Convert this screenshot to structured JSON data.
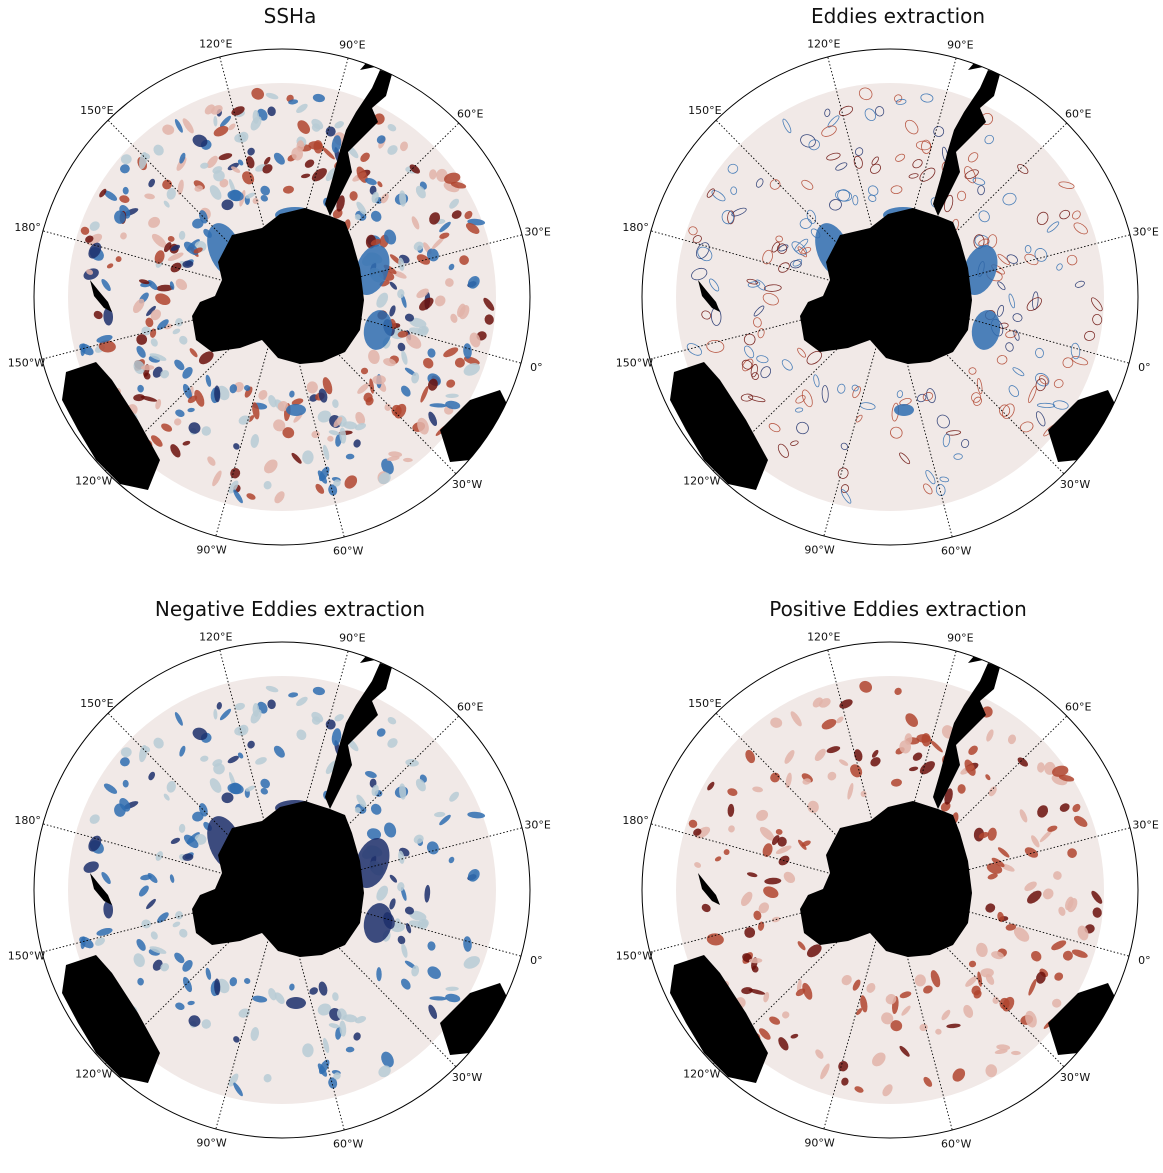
{
  "panels": [
    {
      "id": "ssha",
      "title": "SSHa",
      "mode": "full"
    },
    {
      "id": "eddies",
      "title": "Eddies extraction",
      "mode": "mixed"
    },
    {
      "id": "negative",
      "title": "Negative Eddies extraction",
      "mode": "negative"
    },
    {
      "id": "positive",
      "title": "Positive Eddies extraction",
      "mode": "positive"
    }
  ],
  "meridians": [
    {
      "lon": -120,
      "label": "120°W"
    },
    {
      "lon": -90,
      "label": "90°W"
    },
    {
      "lon": -60,
      "label": "60°W"
    },
    {
      "lon": -150,
      "label": "150°W"
    },
    {
      "lon": -30,
      "label": "30°W"
    },
    {
      "lon": 180,
      "label": "180°"
    },
    {
      "lon": 0,
      "label": "0°"
    },
    {
      "lon": 150,
      "label": "150°E"
    },
    {
      "lon": 30,
      "label": "30°E"
    },
    {
      "lon": 120,
      "label": "120°E"
    },
    {
      "lon": 60,
      "label": "60°E"
    },
    {
      "lon": 90,
      "label": "90°E"
    }
  ],
  "colors": {
    "land": "#000000",
    "ocean_background": "#f1e9e7",
    "negative_strong": "#1c2f6b",
    "negative_mid": "#2f6db0",
    "negative_light": "#b7cbd5",
    "positive_strong": "#6b0f0a",
    "positive_mid": "#b0442e",
    "positive_light": "#e2b3a8"
  }
}
